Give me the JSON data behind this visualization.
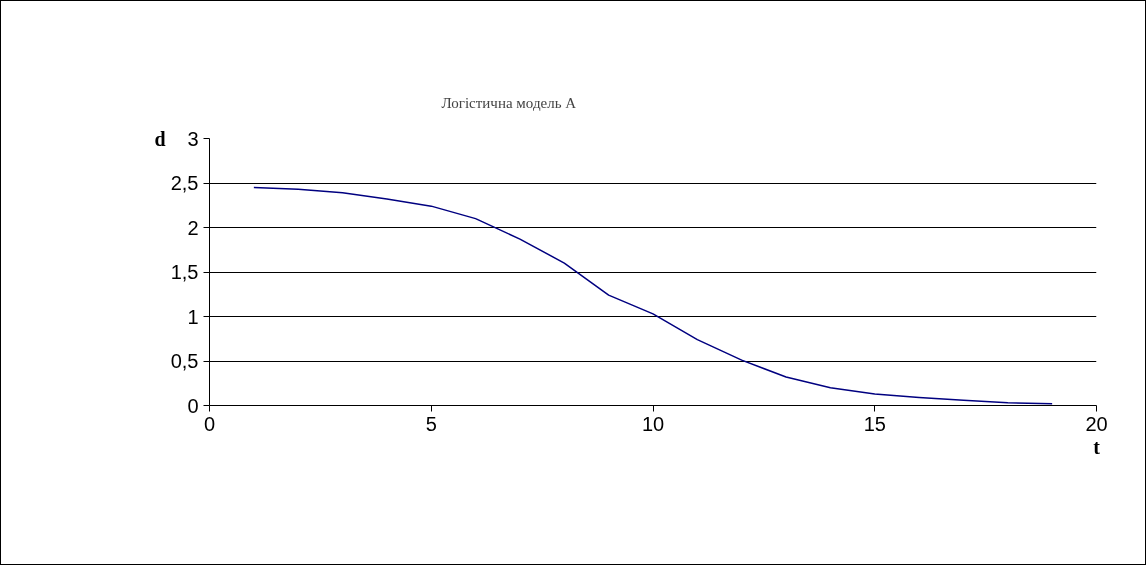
{
  "chart_data": {
    "type": "line",
    "title": "Логістична модель А",
    "xlabel": "t",
    "ylabel": "d",
    "x": [
      1,
      2,
      3,
      4,
      5,
      6,
      7,
      8,
      9,
      10,
      11,
      12,
      13,
      14,
      15,
      16,
      17,
      18,
      19
    ],
    "series": [
      {
        "color": "#000080",
        "values": [
          2.45,
          2.43,
          2.39,
          2.32,
          2.24,
          2.1,
          1.87,
          1.6,
          1.24,
          1.03,
          0.74,
          0.51,
          0.32,
          0.2,
          0.13,
          0.09,
          0.06,
          0.03,
          0.02
        ]
      }
    ],
    "xlim": [
      0,
      20
    ],
    "xticks": [
      0,
      5,
      10,
      15,
      20
    ],
    "ylim": [
      0,
      3
    ],
    "yticks": [
      0,
      {
        "value": 0.5,
        "label": "0,5"
      },
      1,
      {
        "value": 1.5,
        "label": "1,5"
      },
      2,
      {
        "value": 2.5,
        "label": "2,5"
      },
      3
    ],
    "grid": "y",
    "marker": "none",
    "line_style": "solid"
  }
}
